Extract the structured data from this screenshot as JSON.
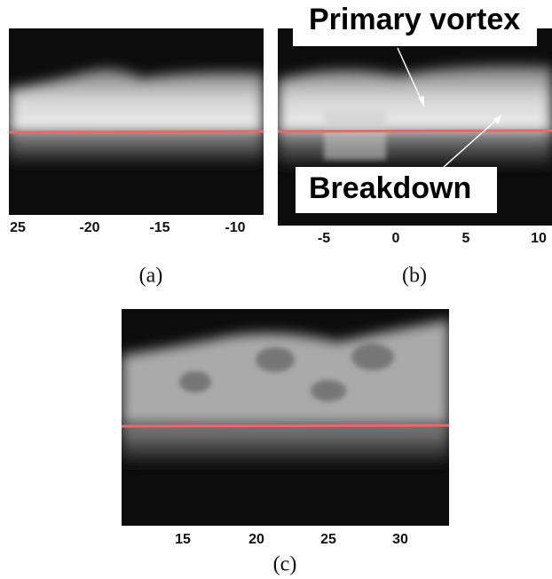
{
  "panels": [
    {
      "caption": "(a)",
      "ticks": [
        "25",
        "-20",
        "-15",
        "-10"
      ]
    },
    {
      "caption": "(b)",
      "ticks": [
        "-5",
        "0",
        "5",
        "10"
      ],
      "annotations": [
        "Primary vortex",
        "Breakdown"
      ]
    },
    {
      "caption": "(c)",
      "ticks": [
        "15",
        "20",
        "25",
        "30"
      ]
    }
  ]
}
